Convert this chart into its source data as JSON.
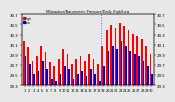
{
  "title": "Milwaukee/Barometric Pressure/Daily High/Low",
  "bar_width": 0.4,
  "background_color": "#e8e8e8",
  "plot_bg_color": "#e8e8e8",
  "high_color": "#ff0000",
  "low_color": "#0000cc",
  "dotted_line_x": 18.5,
  "ylim_min": 29.3,
  "ylim_max": 30.7,
  "ytick_step": 0.2,
  "days": [
    1,
    2,
    3,
    4,
    5,
    6,
    7,
    8,
    9,
    10,
    11,
    12,
    13,
    14,
    15,
    16,
    17,
    18,
    19,
    20,
    21,
    22,
    23,
    24,
    25,
    26,
    27,
    28,
    29,
    30
  ],
  "high_values": [
    30.18,
    30.05,
    29.78,
    29.88,
    30.08,
    29.95,
    29.75,
    29.68,
    29.82,
    30.02,
    29.92,
    29.72,
    29.82,
    29.88,
    29.78,
    29.92,
    29.82,
    29.72,
    30.08,
    30.38,
    30.48,
    30.42,
    30.52,
    30.46,
    30.38,
    30.32,
    30.28,
    30.22,
    30.08,
    29.92
  ],
  "low_values": [
    29.88,
    29.72,
    29.52,
    29.58,
    29.78,
    29.62,
    29.42,
    29.38,
    29.52,
    29.68,
    29.62,
    29.42,
    29.52,
    29.58,
    29.48,
    29.62,
    29.52,
    29.38,
    29.68,
    29.98,
    30.08,
    30.02,
    30.18,
    30.08,
    29.98,
    29.92,
    29.88,
    29.78,
    29.68,
    29.52
  ],
  "legend_high": "High",
  "legend_low": "Low"
}
